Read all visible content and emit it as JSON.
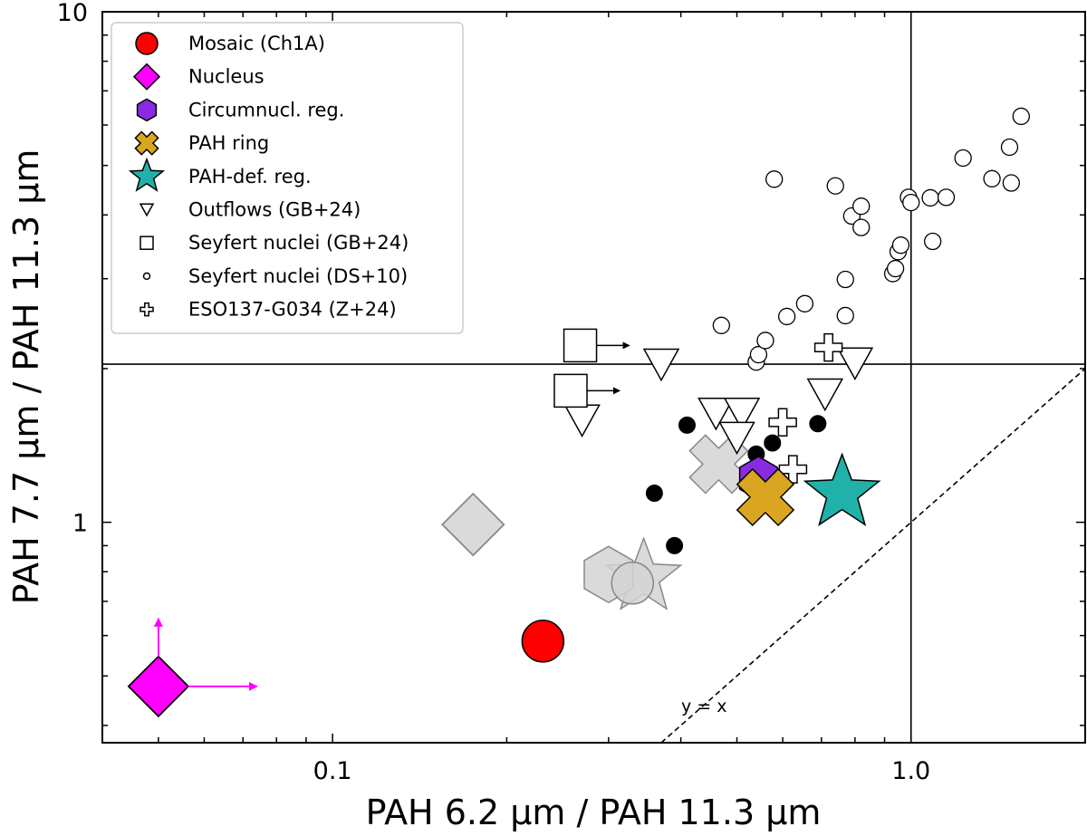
{
  "chart_data": {
    "type": "scatter",
    "xlabel": "PAH 6.2 μm / PAH 11.3 μm",
    "ylabel": "PAH 7.7 μm / PAH 11.3 μm",
    "xscale": "log",
    "yscale": "log",
    "xlim": [
      0.04,
      2.0
    ],
    "ylim": [
      0.37,
      10
    ],
    "x_ticks": [
      {
        "value": 0.1,
        "label": "0.1"
      },
      {
        "value": 1.0,
        "label": "1.0"
      }
    ],
    "y_ticks": [
      {
        "value": 1,
        "label": "1"
      },
      {
        "value": 10,
        "label": "10"
      }
    ],
    "grid": false,
    "legend_position": "top-left",
    "reference_lines": {
      "vertical_x": 1.0,
      "horizontal_y": 2.04,
      "identity_label": "y = x"
    },
    "series": [
      {
        "name": "Mosaic (Ch1A)",
        "marker": "circle",
        "color": "#ff0000",
        "points": [
          {
            "x": 0.231,
            "y": 0.585
          }
        ]
      },
      {
        "name": "Nucleus",
        "marker": "diamond",
        "color": "#ff00ff",
        "upper_limit_arrows": true,
        "points": [
          {
            "x": 0.05,
            "y": 0.477
          }
        ]
      },
      {
        "name": "Circumnucl. reg.",
        "marker": "hexagon",
        "color": "#8a2be2",
        "points": [
          {
            "x": 0.545,
            "y": 1.22
          }
        ]
      },
      {
        "name": "PAH ring",
        "marker": "x",
        "color": "#daa520",
        "points": [
          {
            "x": 0.56,
            "y": 1.12
          }
        ]
      },
      {
        "name": "PAH-def. reg.",
        "marker": "star",
        "color": "#20b2aa",
        "points": [
          {
            "x": 0.76,
            "y": 1.14
          }
        ]
      },
      {
        "name": "Outflows (GB+24)",
        "marker": "triangle-down",
        "color": "#ffffff",
        "points": [
          {
            "x": 0.37,
            "y": 2.06
          },
          {
            "x": 0.27,
            "y": 1.6
          },
          {
            "x": 0.46,
            "y": 1.65
          },
          {
            "x": 0.51,
            "y": 1.65
          },
          {
            "x": 0.5,
            "y": 1.48
          },
          {
            "x": 0.71,
            "y": 1.8
          },
          {
            "x": 0.8,
            "y": 2.07
          }
        ]
      },
      {
        "name": "Seyfert nuclei (GB+24)",
        "marker": "square",
        "color": "#ffffff",
        "limit_arrows": "right",
        "points": [
          {
            "x": 0.268,
            "y": 2.22
          },
          {
            "x": 0.258,
            "y": 1.81
          }
        ]
      },
      {
        "name": "Seyfert nuclei (DS+10)",
        "marker": "circle-small",
        "color": "#ffffff",
        "points": [
          {
            "x": 0.47,
            "y": 2.43
          },
          {
            "x": 0.54,
            "y": 2.06
          },
          {
            "x": 0.545,
            "y": 2.13
          },
          {
            "x": 0.56,
            "y": 2.27
          },
          {
            "x": 0.61,
            "y": 2.53
          },
          {
            "x": 0.655,
            "y": 2.68
          },
          {
            "x": 0.77,
            "y": 2.54
          },
          {
            "x": 0.77,
            "y": 2.99
          },
          {
            "x": 0.93,
            "y": 3.07
          },
          {
            "x": 0.94,
            "y": 3.14
          },
          {
            "x": 0.95,
            "y": 3.39
          },
          {
            "x": 0.96,
            "y": 3.49
          },
          {
            "x": 0.74,
            "y": 4.56
          },
          {
            "x": 0.58,
            "y": 4.7
          },
          {
            "x": 0.79,
            "y": 3.98
          },
          {
            "x": 0.82,
            "y": 4.16
          },
          {
            "x": 0.82,
            "y": 3.78
          },
          {
            "x": 0.99,
            "y": 4.33
          },
          {
            "x": 1.0,
            "y": 4.23
          },
          {
            "x": 1.08,
            "y": 4.32
          },
          {
            "x": 1.15,
            "y": 4.33
          },
          {
            "x": 1.09,
            "y": 3.55
          },
          {
            "x": 1.23,
            "y": 5.17
          },
          {
            "x": 1.38,
            "y": 4.71
          },
          {
            "x": 1.48,
            "y": 5.43
          },
          {
            "x": 1.49,
            "y": 4.62
          },
          {
            "x": 1.55,
            "y": 6.24
          }
        ]
      },
      {
        "name": "ESO137-G034 (Z+24)",
        "marker": "plus",
        "color": "#ffffff",
        "points": [
          {
            "x": 0.72,
            "y": 2.2
          },
          {
            "x": 0.6,
            "y": 1.57
          },
          {
            "x": 0.625,
            "y": 1.27
          }
        ]
      },
      {
        "name": "",
        "marker": "dot",
        "color": "#000000",
        "points": [
          {
            "x": 0.41,
            "y": 1.55
          },
          {
            "x": 0.36,
            "y": 1.14
          },
          {
            "x": 0.39,
            "y": 0.9
          },
          {
            "x": 0.54,
            "y": 1.36
          },
          {
            "x": 0.576,
            "y": 1.43
          },
          {
            "x": 0.69,
            "y": 1.56
          }
        ]
      },
      {
        "name": "",
        "marker": "diamond",
        "color": "#d3d3d3",
        "points": [
          {
            "x": 0.175,
            "y": 0.99
          }
        ]
      },
      {
        "name": "",
        "marker": "hexagon",
        "color": "#d3d3d3",
        "points": [
          {
            "x": 0.3,
            "y": 0.79
          }
        ]
      },
      {
        "name": "",
        "marker": "circle",
        "color": "#d3d3d3",
        "points": [
          {
            "x": 0.33,
            "y": 0.76
          }
        ]
      },
      {
        "name": "",
        "marker": "star",
        "color": "#d3d3d3",
        "points": [
          {
            "x": 0.345,
            "y": 0.78
          }
        ]
      },
      {
        "name": "",
        "marker": "x",
        "color": "#d3d3d3",
        "points": [
          {
            "x": 0.465,
            "y": 1.3
          }
        ]
      }
    ]
  }
}
